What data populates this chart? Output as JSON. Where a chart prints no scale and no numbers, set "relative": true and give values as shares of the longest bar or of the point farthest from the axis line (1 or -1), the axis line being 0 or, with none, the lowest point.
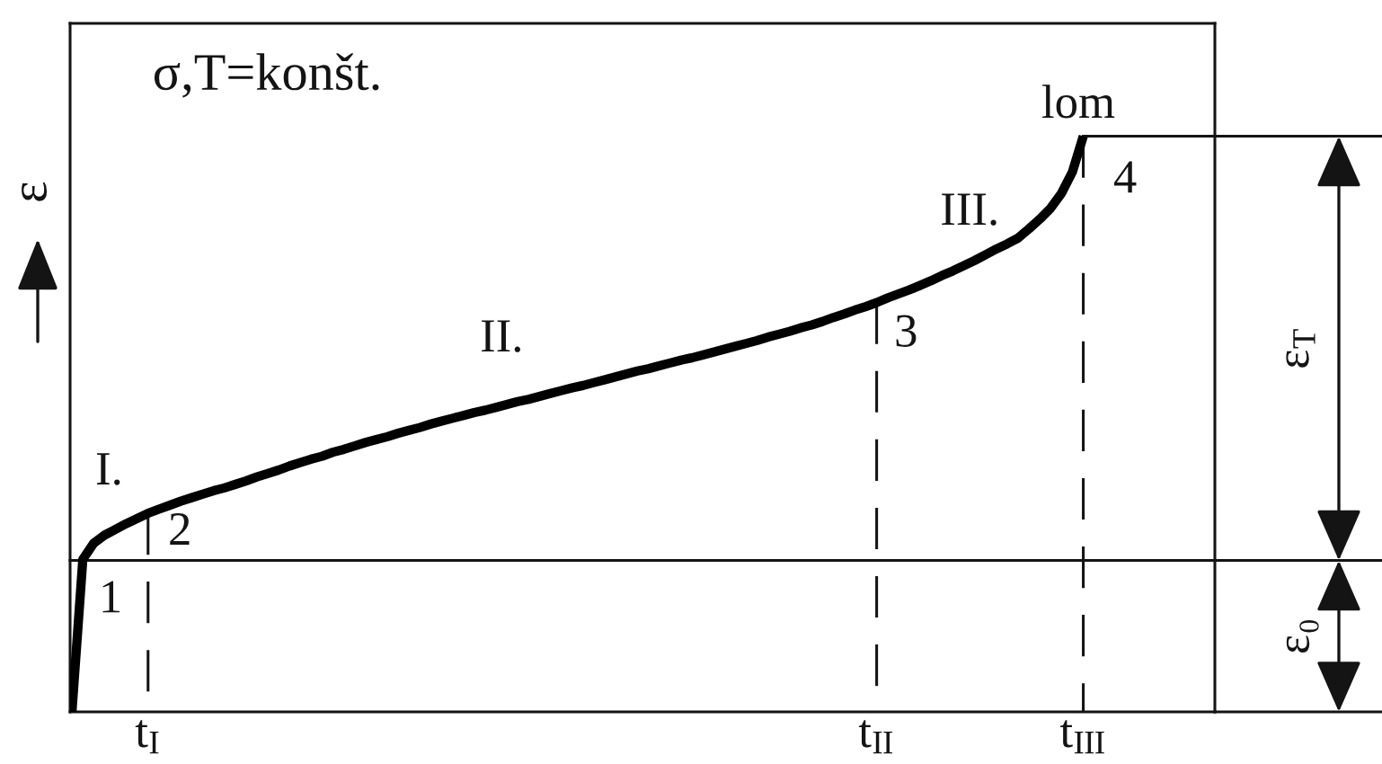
{
  "chart_data": {
    "type": "line",
    "relative": true,
    "ylabel": "ε",
    "categories": [
      null,
      null,
      null,
      null,
      null,
      null,
      null,
      "t$_{I}$",
      null,
      null,
      null,
      null,
      null,
      null,
      null,
      null,
      null,
      null,
      null,
      null,
      null,
      null,
      null,
      null,
      null,
      null,
      null,
      null,
      null,
      null,
      null,
      null,
      null,
      null,
      null,
      null,
      null,
      null,
      null,
      null,
      null,
      null,
      null,
      null,
      null,
      null,
      null,
      null,
      null,
      null,
      null,
      null,
      null,
      null,
      null,
      null,
      null,
      null,
      null,
      null,
      null,
      null,
      null,
      null,
      null,
      null,
      null,
      null,
      null,
      null,
      null,
      null,
      null,
      null,
      "t$_{II}$",
      null,
      null,
      null,
      null,
      null,
      null,
      null,
      null,
      null,
      null,
      null,
      null,
      null,
      null,
      null,
      null,
      null,
      null,
      "t$_{III}$"
    ],
    "series": [
      {
        "color": "#000000",
        "values": [
          0,
          0.265,
          0.293,
          0.307,
          0.317,
          0.327,
          0.336,
          0.345,
          0.352,
          0.359,
          0.366,
          0.372,
          0.378,
          0.384,
          0.389,
          0.395,
          0.401,
          0.408,
          0.414,
          0.42,
          0.427,
          0.433,
          0.439,
          0.444,
          0.451,
          0.456,
          0.462,
          0.468,
          0.473,
          0.478,
          0.484,
          0.489,
          0.494,
          0.5,
          0.505,
          0.51,
          0.515,
          0.52,
          0.524,
          0.529,
          0.534,
          0.539,
          0.543,
          0.548,
          0.553,
          0.558,
          0.563,
          0.567,
          0.572,
          0.577,
          0.582,
          0.587,
          0.592,
          0.596,
          0.601,
          0.606,
          0.611,
          0.615,
          0.62,
          0.625,
          0.63,
          0.635,
          0.64,
          0.645,
          0.651,
          0.656,
          0.661,
          0.667,
          0.672,
          0.678,
          0.685,
          0.691,
          0.698,
          0.704,
          0.711,
          0.719,
          0.726,
          0.733,
          0.741,
          0.749,
          0.758,
          0.766,
          0.775,
          0.784,
          0.794,
          0.804,
          0.813,
          0.823,
          0.839,
          0.856,
          0.875,
          0.901,
          0.938,
          1
        ]
      }
    ],
    "ref_lines": [
      {
        "axis": "y",
        "value": 0.263
      },
      {
        "axis": "x",
        "value": "t$_{I}$",
        "line_style": "dashed"
      },
      {
        "axis": "x",
        "value": "t$_{II}$",
        "line_style": "dashed"
      },
      {
        "axis": "x",
        "value": "t$_{III}$",
        "line_style": "dashed"
      }
    ],
    "annotations": [
      "σ,T=konšt.",
      "I.",
      "II.",
      "III.",
      "1",
      {
        "text": "2",
        "x": "t$_{I}$",
        "y": 0.345
      },
      {
        "text": "3",
        "x": "t$_{II}$",
        "y": 0.711
      },
      {
        "text": "lom",
        "x": "t$_{III}$",
        "y": 1
      },
      {
        "text": "4",
        "x": "t$_{III}$",
        "y": 1
      },
      "ε$_{T}$",
      "ε₀"
    ]
  }
}
